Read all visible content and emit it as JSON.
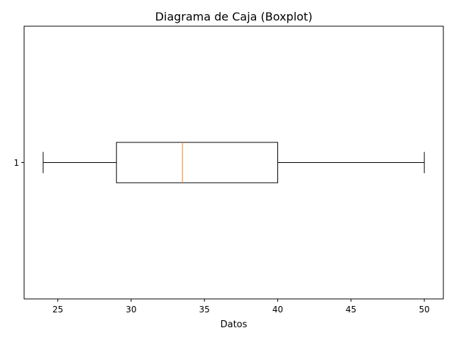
{
  "chart_data": {
    "type": "boxplot",
    "orientation": "horizontal",
    "title": "Diagrama de Caja (Boxplot)",
    "xlabel": "Datos",
    "ylabel": "",
    "xlim": [
      22.7,
      51.3
    ],
    "x_ticks": [
      25,
      30,
      35,
      40,
      45,
      50
    ],
    "y_ticks": [
      "1"
    ],
    "grid": false,
    "series": [
      {
        "category": "1",
        "whisker_low": 24,
        "q1": 29,
        "median": 33.5,
        "q3": 40,
        "whisker_high": 50
      }
    ],
    "colors": {
      "box": "#000000",
      "median": "#ff7f0e"
    }
  }
}
